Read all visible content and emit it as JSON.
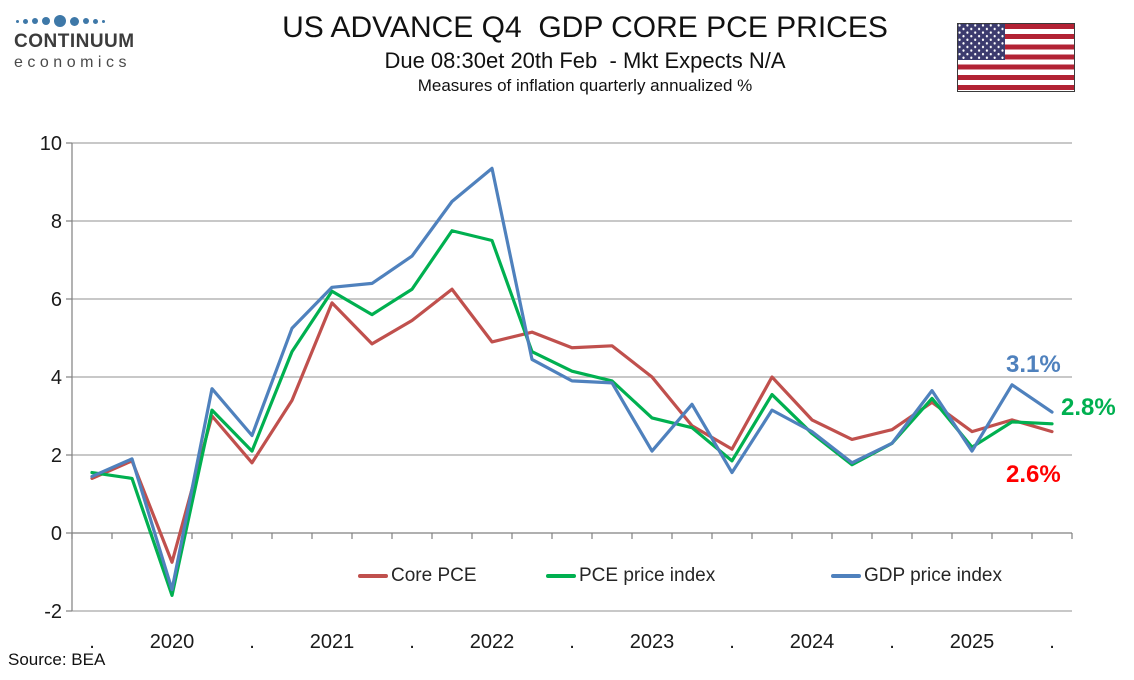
{
  "header": {
    "logo": {
      "line1": "CONTINUUM",
      "line2": "economics",
      "dots_icon": "continuum-dots",
      "dot_color": "#3e78a8",
      "dot_sizes": [
        3,
        5,
        6,
        8,
        12,
        9,
        6,
        5,
        3
      ]
    },
    "flag_icon": "us-flag"
  },
  "chart_data": {
    "type": "line",
    "title": "US ADVANCE Q4  GDP CORE PCE PRICES",
    "subtitle": "Due 08:30et 20th Feb  - Mkt Expects N/A",
    "note": "Measures of inflation quarterly annualized %",
    "xlabel": "",
    "ylabel": "",
    "ylim": [
      -2,
      10
    ],
    "y_ticks": [
      10,
      8,
      6,
      4,
      2,
      0,
      -2
    ],
    "grid": true,
    "legend_position": "bottom-inside",
    "x_quarters": [
      "2019Q4",
      "2020Q1",
      "2020Q2",
      "2020Q3",
      "2020Q4",
      "2021Q1",
      "2021Q2",
      "2021Q3",
      "2021Q4",
      "2022Q1",
      "2022Q2",
      "2022Q3",
      "2022Q4",
      "2023Q1",
      "2023Q2",
      "2023Q3",
      "2023Q4",
      "2024Q1",
      "2024Q2",
      "2024Q3",
      "2024Q4",
      "2025Q1",
      "2025Q2",
      "2025Q3",
      "2025Q4"
    ],
    "x_tick_labels": [
      ".",
      "2020",
      ".",
      "2021",
      ".",
      "2022",
      ".",
      "2023",
      ".",
      "2024",
      ".",
      "2025",
      "."
    ],
    "x_tick_every": 2,
    "series": [
      {
        "id": "core-pce",
        "name": "Core PCE",
        "color": "#C0504D",
        "values": [
          1.4,
          1.85,
          -0.75,
          3.0,
          1.8,
          3.4,
          5.9,
          4.85,
          5.45,
          6.25,
          4.9,
          5.15,
          4.75,
          4.8,
          4.0,
          2.75,
          2.15,
          4.0,
          2.9,
          2.4,
          2.65,
          3.35,
          2.6,
          2.9,
          2.6
        ]
      },
      {
        "id": "pce-price-index",
        "name": "PCE price index",
        "color": "#00B050",
        "values": [
          1.55,
          1.4,
          -1.6,
          3.15,
          2.1,
          4.65,
          6.2,
          5.6,
          6.25,
          7.75,
          7.5,
          4.65,
          4.15,
          3.9,
          2.95,
          2.7,
          1.85,
          3.55,
          2.55,
          1.75,
          2.3,
          3.45,
          2.2,
          2.85,
          2.8
        ]
      },
      {
        "id": "gdp-price-index",
        "name": "GDP price index",
        "color": "#4F81BD",
        "values": [
          1.45,
          1.9,
          -1.45,
          3.7,
          2.5,
          5.25,
          6.3,
          6.4,
          7.1,
          8.5,
          9.35,
          4.45,
          3.9,
          3.85,
          2.1,
          3.3,
          1.55,
          3.15,
          2.6,
          1.8,
          2.3,
          3.65,
          2.1,
          3.8,
          3.1
        ]
      }
    ],
    "annotations": [
      {
        "text": "3.1%",
        "series": "GDP price index",
        "color": "#4F81BD"
      },
      {
        "text": "2.8%",
        "series": "PCE price index",
        "color": "#00B050"
      },
      {
        "text": "2.6%",
        "series": "Core PCE",
        "color": "#FF0000"
      }
    ]
  },
  "source": "Source: BEA"
}
